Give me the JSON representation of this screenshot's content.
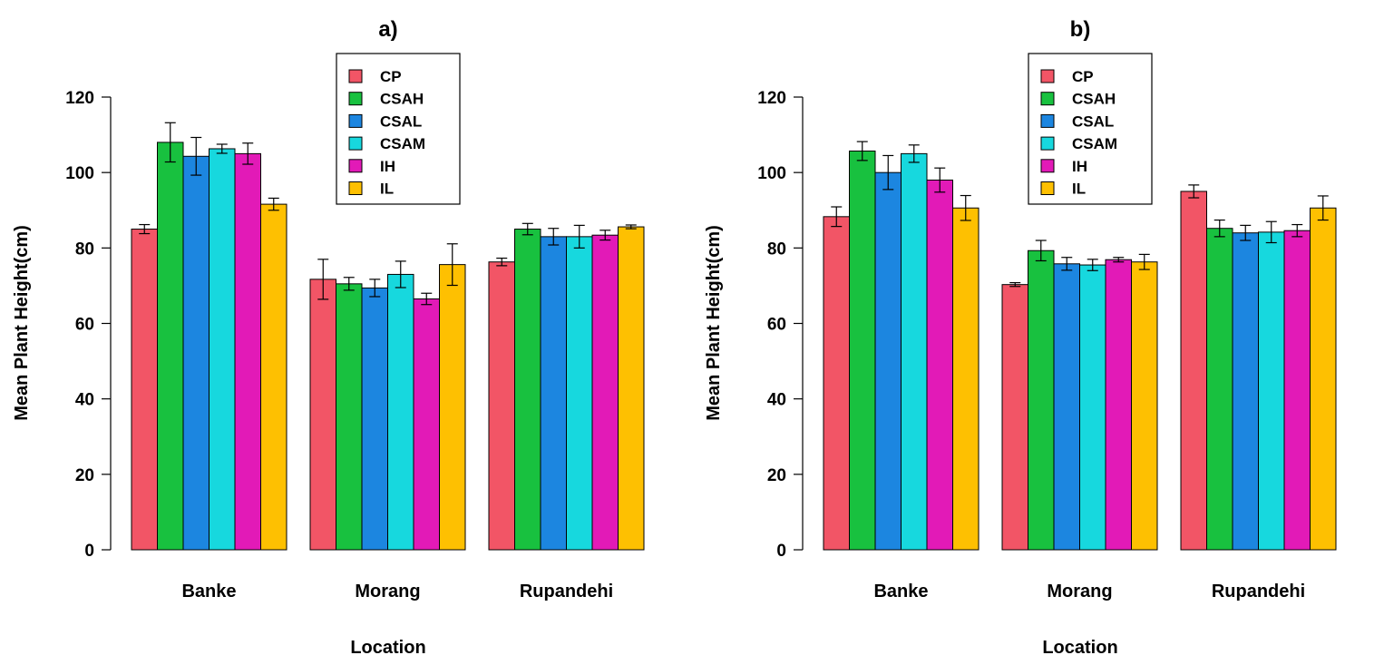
{
  "chart_data": [
    {
      "type": "bar",
      "title": "a)",
      "xlabel": "Location",
      "ylabel": "Mean Plant Height(cm)",
      "ylim": [
        0,
        120
      ],
      "yticks": [
        "0",
        "20",
        "40",
        "60",
        "80",
        "100",
        "120"
      ],
      "categories": [
        "Banke",
        "Morang",
        "Rupandehi"
      ],
      "legend_position": "top",
      "series": [
        {
          "name": "CP",
          "color": "#f25566",
          "values": [
            85,
            71.7,
            76.3
          ],
          "errors": [
            1.2,
            5.3,
            1.0
          ]
        },
        {
          "name": "CSAH",
          "color": "#18c13f",
          "values": [
            108,
            70.5,
            85
          ],
          "errors": [
            5.2,
            1.7,
            1.5
          ]
        },
        {
          "name": "CSAL",
          "color": "#1c86e0",
          "values": [
            104.3,
            69.4,
            83
          ],
          "errors": [
            5.0,
            2.3,
            2.2
          ]
        },
        {
          "name": "CSAM",
          "color": "#17d8de",
          "values": [
            106.3,
            73,
            83
          ],
          "errors": [
            1.2,
            3.5,
            3.0
          ]
        },
        {
          "name": "IH",
          "color": "#e21ab7",
          "values": [
            105,
            66.5,
            83.4
          ],
          "errors": [
            2.8,
            1.5,
            1.3
          ]
        },
        {
          "name": "IL",
          "color": "#fec001",
          "values": [
            91.6,
            75.6,
            85.6
          ],
          "errors": [
            1.6,
            5.5,
            0.5
          ]
        }
      ]
    },
    {
      "type": "bar",
      "title": "b)",
      "xlabel": "Location",
      "ylabel": "Mean Plant Height(cm)",
      "ylim": [
        0,
        120
      ],
      "yticks": [
        "0",
        "20",
        "40",
        "60",
        "80",
        "100",
        "120"
      ],
      "categories": [
        "Banke",
        "Morang",
        "Rupandehi"
      ],
      "legend_position": "top",
      "series": [
        {
          "name": "CP",
          "color": "#f25566",
          "values": [
            88.3,
            70.3,
            95
          ],
          "errors": [
            2.6,
            0.5,
            1.7
          ]
        },
        {
          "name": "CSAH",
          "color": "#18c13f",
          "values": [
            105.7,
            79.3,
            85.2
          ],
          "errors": [
            2.5,
            2.7,
            2.2
          ]
        },
        {
          "name": "CSAL",
          "color": "#1c86e0",
          "values": [
            100,
            75.8,
            84
          ],
          "errors": [
            4.5,
            1.7,
            2.0
          ]
        },
        {
          "name": "CSAM",
          "color": "#17d8de",
          "values": [
            105,
            75.5,
            84.2
          ],
          "errors": [
            2.3,
            1.5,
            2.8
          ]
        },
        {
          "name": "IH",
          "color": "#e21ab7",
          "values": [
            98,
            76.9,
            84.6
          ],
          "errors": [
            3.2,
            0.6,
            1.6
          ]
        },
        {
          "name": "IL",
          "color": "#fec001",
          "values": [
            90.6,
            76.3,
            90.6
          ],
          "errors": [
            3.3,
            2.0,
            3.2
          ]
        }
      ]
    }
  ]
}
